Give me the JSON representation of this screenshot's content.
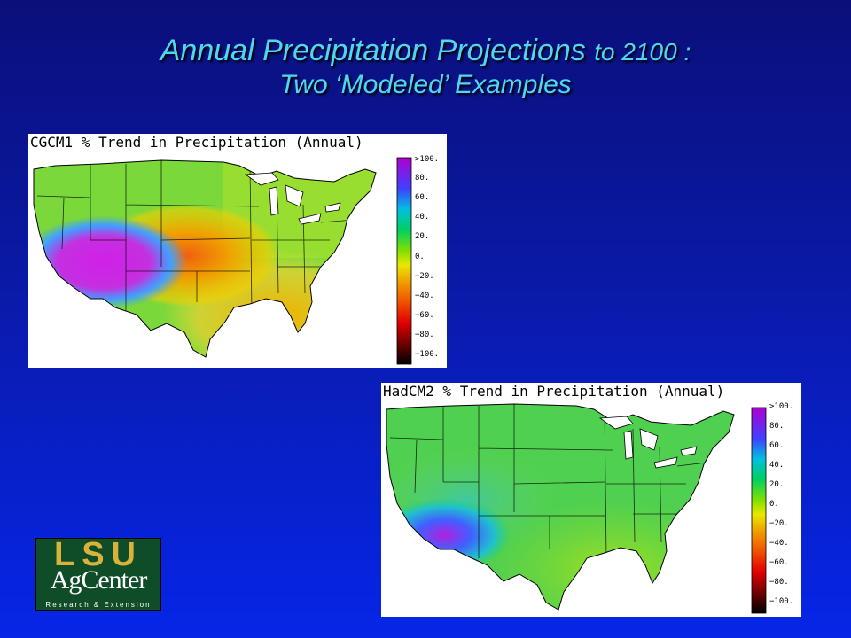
{
  "slide": {
    "title_main": "Annual Precipitation Projections",
    "title_suffix": "to 2100 :",
    "subtitle": "Two ‘Modeled’ Examples"
  },
  "maps": [
    {
      "title": "CGCM1 % Trend in Precipitation (Annual)",
      "legend_labels": [
        ">100.",
        "80.",
        "60.",
        "40.",
        "20.",
        "0.",
        "−20.",
        "−40.",
        "−60.",
        "−80.",
        "−100."
      ]
    },
    {
      "title": "HadCM2 % Trend in Precipitation (Annual)",
      "legend_labels": [
        ">100.",
        "80.",
        "60.",
        "40.",
        "20.",
        "0.",
        "−20.",
        "−40.",
        "−60.",
        "−80.",
        "−100."
      ]
    }
  ],
  "logo": {
    "lsu": "LSU",
    "agcenter": "AgCenter",
    "tagline": "Research & Extension"
  },
  "colors": {
    "title": "#4fd6f0",
    "legend_high": "#b000d0",
    "legend_zero": "#e8e800",
    "legend_low": "#000000"
  }
}
